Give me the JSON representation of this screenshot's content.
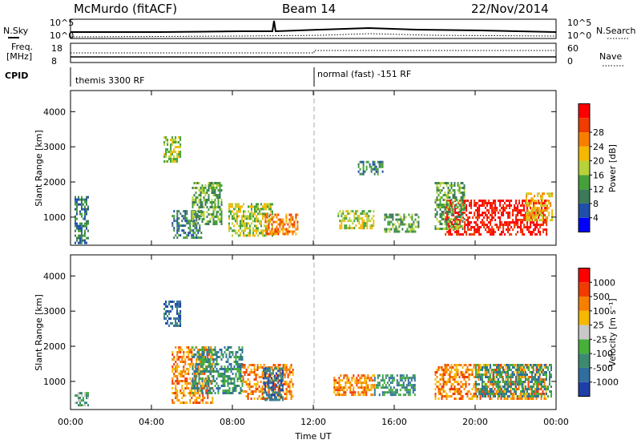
{
  "header": {
    "station": "McMurdo (fitACF)",
    "beam": "Beam 14",
    "date": "22/Nov/2014"
  },
  "status_panels": {
    "nsky_label": "N.Sky",
    "nsearch_label": "N.Search",
    "freq_label": "Freq.",
    "freq_unit": "[MHz]",
    "nave_label": "Nave",
    "cpid_label": "CPID",
    "nsky_ticks": [
      "10^5",
      "10^0"
    ],
    "nsearch_ticks": [
      "10^5",
      "10^0"
    ],
    "freq_ticks": [
      "18",
      "8"
    ],
    "nave_ticks": [
      "60",
      "0"
    ],
    "cpid_segments": [
      {
        "label": "themis 3300 RF"
      },
      {
        "label": "normal (fast) -151 RF"
      }
    ]
  },
  "chart_data": [
    {
      "type": "heatmap",
      "name": "power",
      "xlabel": "Time UT",
      "ylabel": "Slant Range [km]",
      "x_ticks": [
        "00:00",
        "04:00",
        "08:00",
        "12:00",
        "16:00",
        "20:00",
        "00:00"
      ],
      "y_ticks": [
        1000,
        2000,
        3000,
        4000
      ],
      "xlim": [
        0,
        24
      ],
      "ylim": [
        200,
        4600
      ],
      "colorbar_label": "Power [dB]",
      "colorbar_ticks": [
        4,
        8,
        12,
        16,
        20,
        24,
        28
      ],
      "colors": [
        "#0000ff",
        "#1f4fa8",
        "#3c7a5a",
        "#46a03a",
        "#b7d23a",
        "#f5b800",
        "#f77f00",
        "#f03c00",
        "#ff0000"
      ],
      "regions": [
        {
          "t0": 0.2,
          "t1": 0.9,
          "r0": 300,
          "r1": 1600,
          "level": 2
        },
        {
          "t0": 4.6,
          "t1": 5.4,
          "r0": 2600,
          "r1": 3300,
          "level": 4
        },
        {
          "t0": 5.0,
          "t1": 6.5,
          "r0": 400,
          "r1": 1200,
          "level": 2
        },
        {
          "t0": 6.0,
          "t1": 7.5,
          "r0": 800,
          "r1": 2000,
          "level": 3
        },
        {
          "t0": 7.8,
          "t1": 10.0,
          "r0": 500,
          "r1": 1400,
          "level": 4
        },
        {
          "t0": 9.6,
          "t1": 11.2,
          "r0": 500,
          "r1": 1100,
          "level": 6
        },
        {
          "t0": 13.2,
          "t1": 15.0,
          "r0": 700,
          "r1": 1200,
          "level": 4
        },
        {
          "t0": 14.2,
          "t1": 15.4,
          "r0": 2200,
          "r1": 2600,
          "level": 2
        },
        {
          "t0": 15.5,
          "t1": 17.2,
          "r0": 600,
          "r1": 1100,
          "level": 3
        },
        {
          "t0": 18.5,
          "t1": 23.5,
          "r0": 500,
          "r1": 1500,
          "level": 8
        },
        {
          "t0": 18.0,
          "t1": 19.5,
          "r0": 700,
          "r1": 2000,
          "level": 3
        },
        {
          "t0": 22.5,
          "t1": 23.8,
          "r0": 900,
          "r1": 1700,
          "level": 5
        }
      ]
    },
    {
      "type": "heatmap",
      "name": "velocity",
      "xlabel": "Time UT",
      "ylabel": "Slant Range [km]",
      "x_ticks": [
        "00:00",
        "04:00",
        "08:00",
        "12:00",
        "16:00",
        "20:00",
        "00:00"
      ],
      "y_ticks": [
        1000,
        2000,
        3000,
        4000
      ],
      "xlim": [
        0,
        24
      ],
      "ylim": [
        200,
        4600
      ],
      "colorbar_label": "Velocity [m s⁻¹]",
      "colorbar_ticks": [
        "1000",
        "500",
        "100",
        "25",
        "-25",
        "-100",
        "-500",
        "-1000"
      ],
      "colors": [
        "#1f3fa8",
        "#2f6fa0",
        "#3c8a70",
        "#46b03a",
        "#c8c8c8",
        "#f5b800",
        "#f77f00",
        "#f03c00",
        "#ff0000"
      ],
      "regions": [
        {
          "t0": 0.2,
          "t1": 0.9,
          "r0": 300,
          "r1": 700,
          "level": 3
        },
        {
          "t0": 4.6,
          "t1": 5.4,
          "r0": 2600,
          "r1": 3300,
          "level": 1
        },
        {
          "t0": 5.0,
          "t1": 7.0,
          "r0": 400,
          "r1": 2000,
          "level": 6
        },
        {
          "t0": 6.0,
          "t1": 8.5,
          "r0": 700,
          "r1": 2000,
          "level": 2
        },
        {
          "t0": 8.5,
          "t1": 11.0,
          "r0": 500,
          "r1": 1500,
          "level": 6
        },
        {
          "t0": 9.5,
          "t1": 10.5,
          "r0": 500,
          "r1": 1400,
          "level": 1
        },
        {
          "t0": 13.0,
          "t1": 15.0,
          "r0": 600,
          "r1": 1200,
          "level": 6
        },
        {
          "t0": 15.0,
          "t1": 17.0,
          "r0": 600,
          "r1": 1200,
          "level": 2
        },
        {
          "t0": 18.0,
          "t1": 23.5,
          "r0": 500,
          "r1": 1500,
          "level": 6
        },
        {
          "t0": 20.0,
          "t1": 23.8,
          "r0": 600,
          "r1": 1500,
          "level": 2
        }
      ]
    }
  ]
}
